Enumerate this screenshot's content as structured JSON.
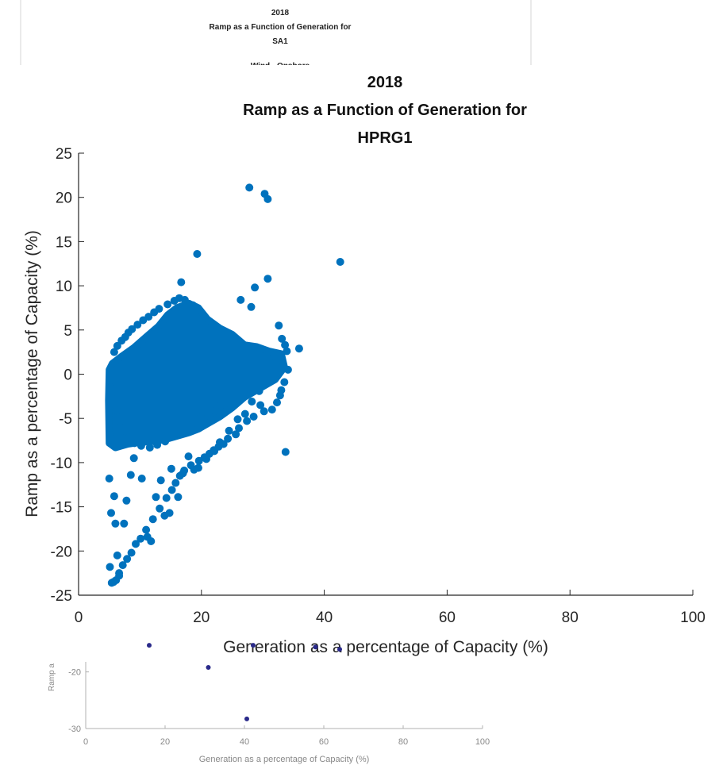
{
  "chart_data": [
    {
      "type": "scatter",
      "title_lines": [
        "2018",
        "Ramp as a Function of Generation for",
        "SA1",
        "Wind - Onshore"
      ],
      "xlabel": "",
      "ylabel": "",
      "xlim": null,
      "ylim": null,
      "x_ticks": [],
      "y_ticks": [],
      "series": [],
      "note": ""
    },
    {
      "type": "scatter",
      "title_lines": [
        "2018",
        "Ramp as a Function of Generation for",
        "HPRG1"
      ],
      "xlabel": "Generation as a percentage of Capacity (%)",
      "ylabel": "Ramp as a percentage of Capacity (%)",
      "xlim": [
        0,
        100
      ],
      "ylim": [
        -25,
        25
      ],
      "x_ticks": [
        "0",
        "20",
        "40",
        "60",
        "80",
        "100"
      ],
      "y_ticks": [
        "25",
        "20",
        "15",
        "10",
        "5",
        "0",
        "-5",
        "-10",
        "-15",
        "-20",
        "-25"
      ],
      "grid": false,
      "legend": "none",
      "colors": {
        "marker": "#0072BD",
        "axis": "#262626"
      },
      "series": [
        {
          "name": "",
          "x": [
            27.8,
            30.3,
            30.8,
            19.3,
            42.6,
            16.7,
            26.4,
            28.1,
            28.7,
            30.8,
            35.9,
            32.6,
            33.1,
            33.6,
            33.9,
            34.1,
            33.5,
            33.0,
            32.8,
            32.3,
            31.5,
            30.2,
            29.6,
            28.5,
            27.4,
            26.1,
            25.6,
            24.3,
            23.6,
            22.8,
            22.0,
            21.3,
            20.5,
            19.6,
            18.3,
            17.2,
            16.5,
            15.8,
            15.2,
            14.3,
            13.2,
            12.1,
            11.0,
            10.1,
            9.3,
            8.6,
            7.9,
            7.2,
            6.6,
            6.1,
            5.7,
            5.4,
            5.1,
            5.0,
            5.3,
            5.8,
            6.0,
            6.3,
            6.6,
            7.4,
            7.8,
            8.5,
            9.0,
            10.3,
            11.2,
            11.8,
            12.6,
            13.4,
            14.0,
            14.8,
            15.1,
            16.2,
            17.0,
            17.9,
            18.8,
            19.5,
            20.8,
            22.1,
            23.0,
            24.5,
            25.9,
            27.1,
            28.2,
            29.4,
            30.9,
            31.8,
            33.7,
            5.8,
            6.3,
            7.0,
            7.6,
            8.1,
            8.7,
            9.6,
            10.5,
            11.4,
            12.3,
            13.1,
            14.5,
            15.6,
            16.4,
            17.3,
            18.6,
            5.2,
            5.6,
            6.2,
            6.8,
            7.5,
            8.2,
            9.1,
            10.2,
            11.6,
            12.8,
            14.1,
            15.5,
            17.1,
            18.4,
            19.9,
            21.5,
            23.2
          ],
          "y": [
            21.1,
            20.4,
            19.8,
            13.6,
            12.7,
            10.4,
            8.4,
            7.6,
            9.8,
            10.8,
            2.9,
            5.5,
            4.0,
            3.3,
            2.6,
            0.5,
            -0.9,
            -1.8,
            -2.4,
            -3.2,
            -4.0,
            -4.2,
            -3.5,
            -4.8,
            -5.3,
            -6.1,
            -6.8,
            -7.3,
            -7.9,
            -8.2,
            -8.6,
            -9.0,
            -9.4,
            -9.8,
            -10.3,
            -10.9,
            -11.5,
            -12.3,
            -13.1,
            -14.0,
            -15.2,
            -16.4,
            -17.6,
            -18.6,
            -19.2,
            -20.2,
            -20.9,
            -21.6,
            -22.5,
            -23.3,
            -23.5,
            -23.6,
            -21.8,
            -11.8,
            -15.7,
            -13.8,
            -16.9,
            -20.5,
            -22.8,
            -16.9,
            -14.3,
            -11.4,
            -9.5,
            -11.8,
            -18.4,
            -18.9,
            -13.9,
            -12.0,
            -16.0,
            -15.7,
            -10.7,
            -13.9,
            -11.2,
            -9.3,
            -10.8,
            -10.6,
            -9.6,
            -8.7,
            -7.7,
            -6.4,
            -5.1,
            -4.5,
            -3.1,
            -1.9,
            -0.7,
            1.2,
            -8.8,
            2.5,
            3.2,
            3.8,
            4.2,
            4.7,
            5.1,
            5.6,
            6.1,
            6.5,
            7.0,
            7.4,
            7.9,
            8.3,
            8.6,
            8.4,
            7.8,
            -1.5,
            -2.8,
            -4.1,
            -5.3,
            -6.4,
            -7.2,
            -7.8,
            -8.1,
            -8.3,
            -8.0,
            -7.6,
            -7.0,
            -6.4,
            -5.7,
            -4.9,
            -4.1,
            -3.5
          ]
        }
      ]
    },
    {
      "type": "scatter",
      "title_lines": [],
      "xlabel": "Generation as a percentage of Capacity (%)",
      "ylabel": "Ramp a",
      "xlim": [
        0,
        100
      ],
      "ylim": [
        -30,
        -15
      ],
      "x_ticks": [
        "0",
        "20",
        "40",
        "60",
        "80",
        "100"
      ],
      "y_ticks": [
        "-20",
        "-30"
      ],
      "colors": {
        "marker": "#2a2a8a",
        "axis": "#b0b0b0"
      },
      "series": [
        {
          "name": "",
          "x": [
            16.0,
            30.9,
            42.2,
            57.9,
            64.0,
            40.6
          ],
          "y": [
            -15.3,
            -19.2,
            -15.3,
            -15.6,
            -16.0,
            -28.3
          ]
        }
      ]
    }
  ]
}
